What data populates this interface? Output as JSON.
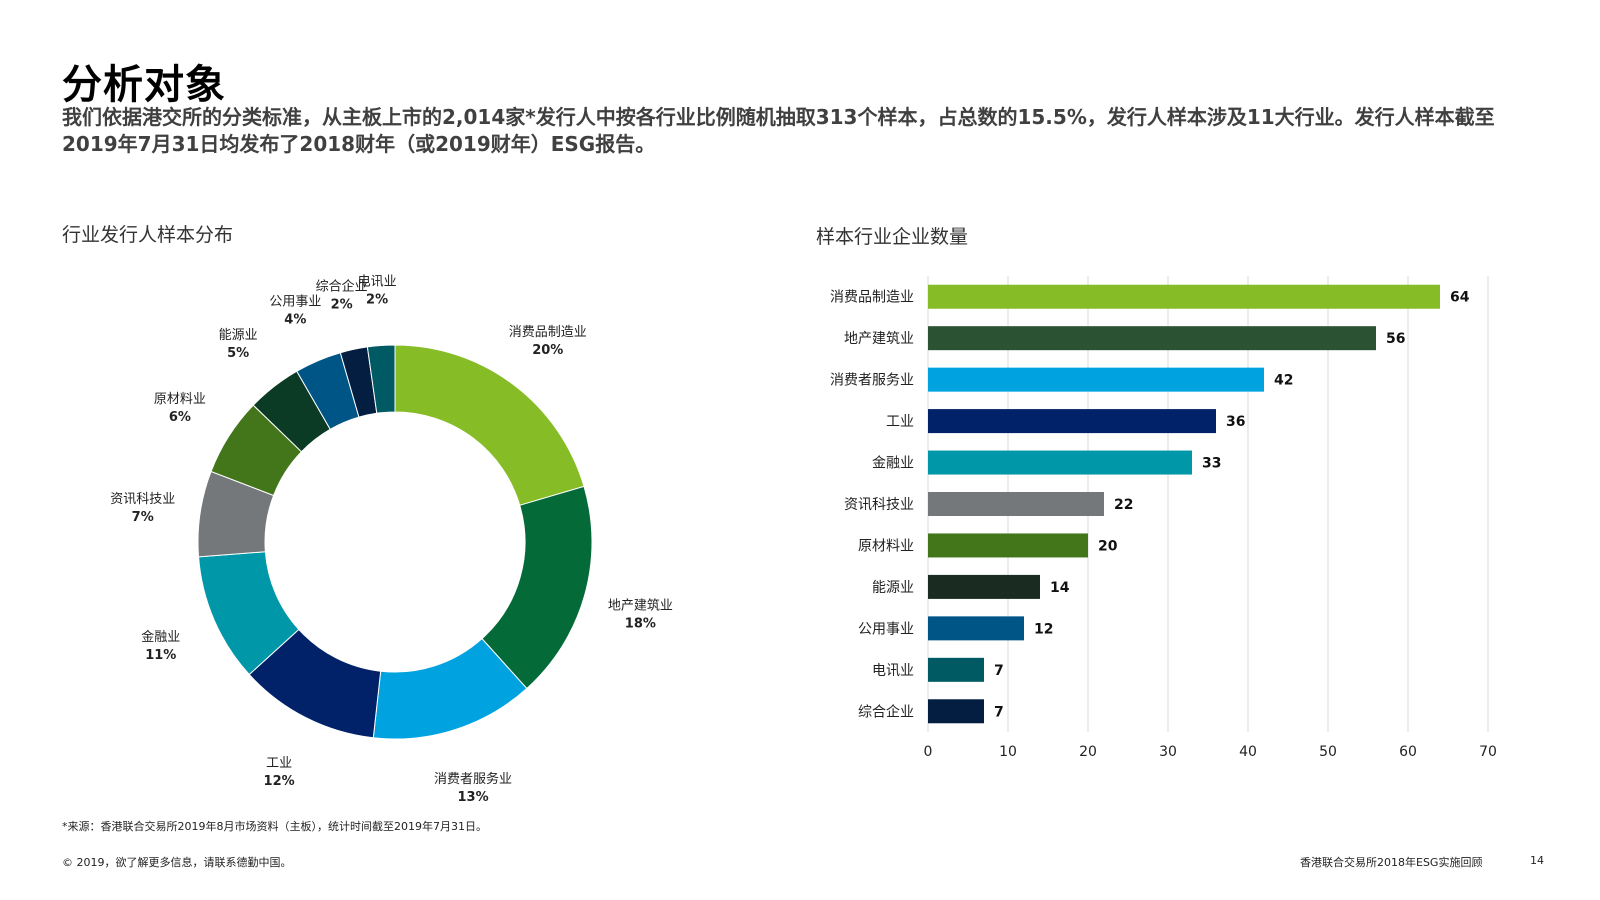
{
  "page": {
    "title": "分析对象",
    "intro": "我们依据港交所的分类标准，从主板上市的2,014家*发行人中按各行业比例随机抽取313个样本，占总数的15.5%，发行人样本涉及11大行业。发行人样本截至2019年7月31日均发布了2018财年（或2019财年）ESG报告。",
    "footnote": "*来源：香港联合交易所2019年8月市场资料（主板），统计时间截至2019年7月31日。",
    "copyright": "© 2019，欲了解更多信息，请联系德勤中国。",
    "report_name": "香港联合交易所2018年ESG实施回顾",
    "page_number": "14"
  },
  "chart_data": [
    {
      "type": "pie",
      "title": "行业发行人样本分布",
      "donut": true,
      "slices": [
        {
          "label": "消费品制造业",
          "pct_label": "20%",
          "value": 64,
          "color": "#86bc25"
        },
        {
          "label": "地产建筑业",
          "pct_label": "18%",
          "value": 56,
          "color": "#046a38"
        },
        {
          "label": "消费者服务业",
          "pct_label": "13%",
          "value": 42,
          "color": "#00a3e0"
        },
        {
          "label": "工业",
          "pct_label": "12%",
          "value": 36,
          "color": "#012169"
        },
        {
          "label": "金融业",
          "pct_label": "11%",
          "value": 33,
          "color": "#0097a9"
        },
        {
          "label": "资讯科技业",
          "pct_label": "7%",
          "value": 22,
          "color": "#75787b"
        },
        {
          "label": "原材料业",
          "pct_label": "6%",
          "value": 20,
          "color": "#43761b"
        },
        {
          "label": "能源业",
          "pct_label": "5%",
          "value": 14,
          "color": "#0b3b24"
        },
        {
          "label": "公用事业",
          "pct_label": "4%",
          "value": 12,
          "color": "#005587"
        },
        {
          "label": "综合企业",
          "pct_label": "2%",
          "value": 7,
          "color": "#041e42"
        },
        {
          "label": "电讯业",
          "pct_label": "2%",
          "value": 7,
          "color": "#005a63"
        }
      ]
    },
    {
      "type": "bar",
      "orientation": "horizontal",
      "title": "样本行业企业数量",
      "categories": [
        "消费品制造业",
        "地产建筑业",
        "消费者服务业",
        "工业",
        "金融业",
        "资讯科技业",
        "原材料业",
        "能源业",
        "公用事业",
        "电讯业",
        "综合企业"
      ],
      "values": [
        64,
        56,
        42,
        36,
        33,
        22,
        20,
        14,
        12,
        7,
        7
      ],
      "colors": [
        "#86bc25",
        "#2c5234",
        "#00a3e0",
        "#012169",
        "#0097a9",
        "#75787b",
        "#43761b",
        "#1a2c22",
        "#005587",
        "#005a63",
        "#041e42"
      ],
      "xlim": [
        0,
        70
      ],
      "xticks": [
        0,
        10,
        20,
        30,
        40,
        50,
        60,
        70
      ],
      "grid": true,
      "xlabel": "",
      "ylabel": ""
    }
  ]
}
